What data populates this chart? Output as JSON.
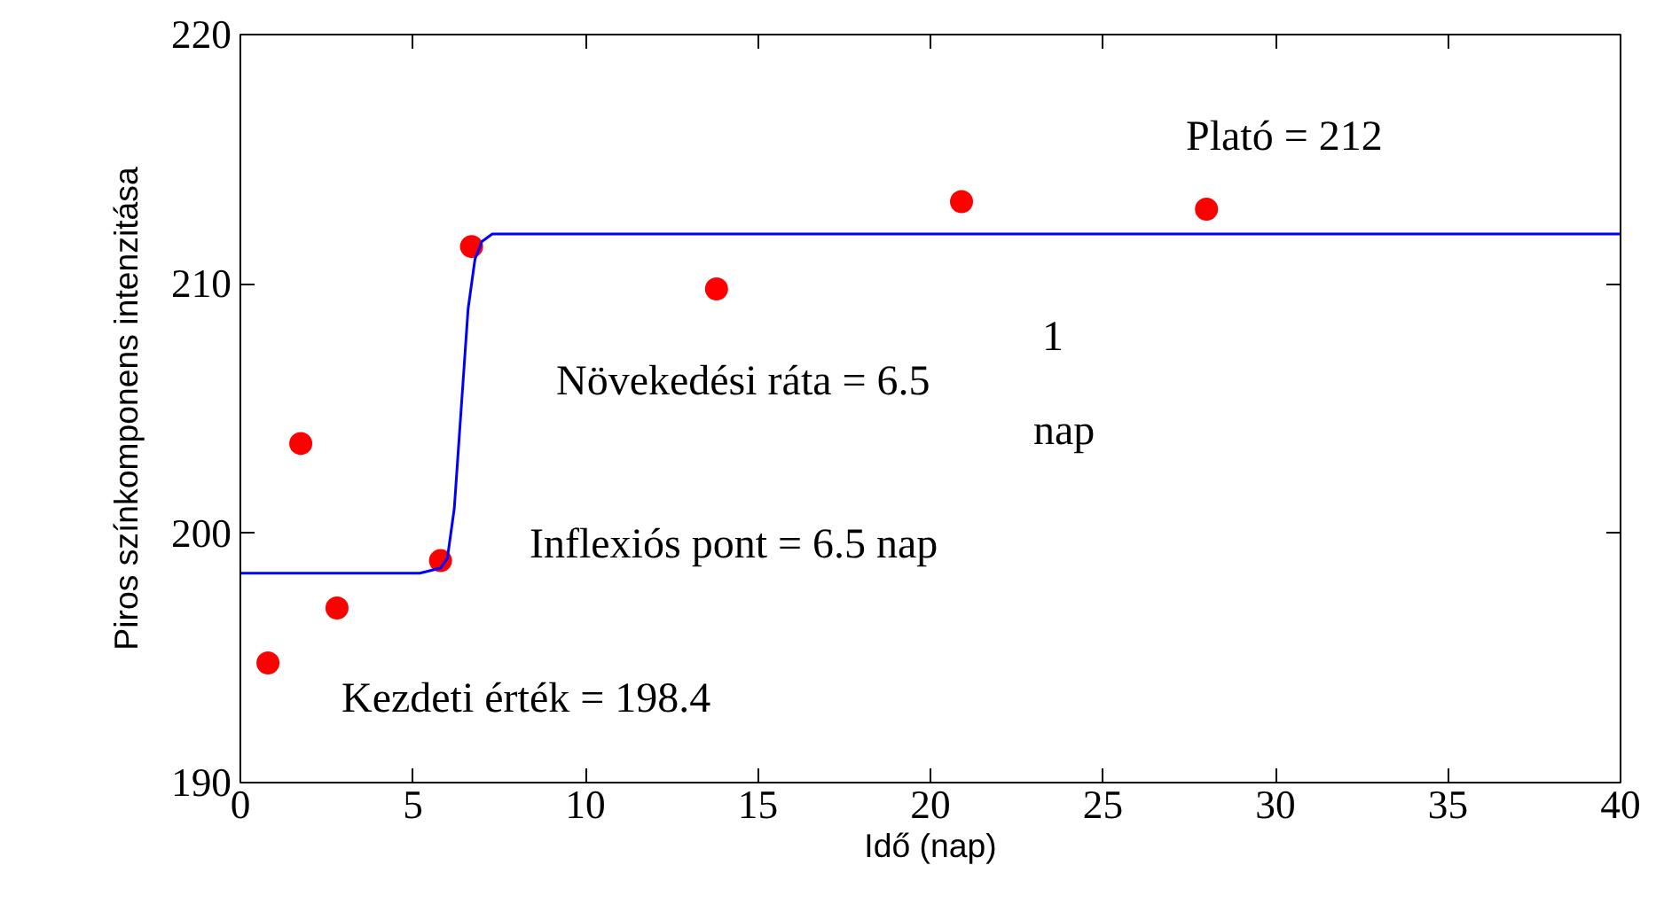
{
  "chart_data": {
    "type": "scatter",
    "xlabel": "Idő (nap)",
    "ylabel": "Piros színkomponens intenzitása",
    "xlim": [
      0,
      40
    ],
    "ylim": [
      190,
      220
    ],
    "xticks": [
      0,
      5,
      10,
      15,
      20,
      25,
      30,
      35,
      40
    ],
    "yticks": [
      190,
      200,
      210,
      220
    ],
    "grid": false,
    "marker": "circle",
    "series": [
      {
        "color": "#ff0000",
        "x": [
          0.8,
          1.75,
          2.8,
          5.8,
          6.7,
          13.8,
          20.9,
          28.0
        ],
        "values": [
          194.8,
          203.6,
          197.0,
          198.9,
          211.5,
          209.8,
          213.3,
          213.0
        ]
      },
      {
        "type": "line",
        "color": "#0000ff",
        "marker": "none",
        "line_style": "solid",
        "x": [
          0,
          5.2,
          5.8,
          6.0,
          6.2,
          6.4,
          6.5,
          6.6,
          6.8,
          7.0,
          7.3,
          40
        ],
        "values": [
          198.4,
          198.4,
          198.6,
          199.0,
          201.0,
          205.0,
          207.0,
          209.0,
          211.0,
          211.7,
          212.0,
          212.0
        ]
      }
    ],
    "annotations": [
      "Plató = 212",
      "Növekedési ráta = 6.5",
      "1",
      "nap",
      "Inflexiós pont = 6.5 nap",
      "Kezdeti érték = 198.4"
    ]
  }
}
